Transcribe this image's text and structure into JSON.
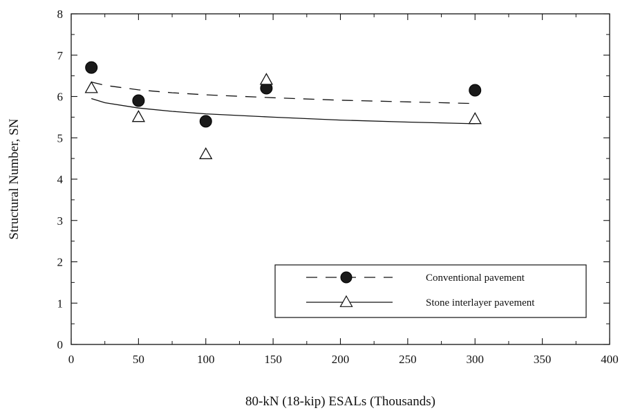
{
  "chart_data": {
    "type": "scatter",
    "xlabel": "80-kN (18-kip) ESALs (Thousands)",
    "ylabel": "Structural Number, SN",
    "xlim": [
      0,
      400
    ],
    "ylim": [
      0,
      8
    ],
    "x_ticks": [
      0,
      50,
      100,
      150,
      200,
      250,
      300,
      350,
      400
    ],
    "y_ticks": [
      0,
      1,
      2,
      3,
      4,
      5,
      6,
      7,
      8
    ],
    "grid": false,
    "legend_position": "bottom-right",
    "series": [
      {
        "name": "Conventional pavement",
        "marker": "filled-circle",
        "line_style": "dashed",
        "points": [
          {
            "x": 15,
            "y": 6.7
          },
          {
            "x": 50,
            "y": 5.9
          },
          {
            "x": 100,
            "y": 5.4
          },
          {
            "x": 145,
            "y": 6.2
          },
          {
            "x": 300,
            "y": 6.15
          }
        ],
        "trend": [
          {
            "x": 15,
            "y": 6.35
          },
          {
            "x": 25,
            "y": 6.27
          },
          {
            "x": 50,
            "y": 6.16
          },
          {
            "x": 75,
            "y": 6.09
          },
          {
            "x": 100,
            "y": 6.04
          },
          {
            "x": 150,
            "y": 5.97
          },
          {
            "x": 200,
            "y": 5.91
          },
          {
            "x": 250,
            "y": 5.87
          },
          {
            "x": 300,
            "y": 5.83
          }
        ]
      },
      {
        "name": "Stone interlayer pavement",
        "marker": "open-triangle",
        "line_style": "solid",
        "points": [
          {
            "x": 15,
            "y": 6.2
          },
          {
            "x": 50,
            "y": 5.5
          },
          {
            "x": 100,
            "y": 4.6
          },
          {
            "x": 145,
            "y": 6.4
          },
          {
            "x": 300,
            "y": 5.45
          }
        ],
        "trend": [
          {
            "x": 15,
            "y": 5.95
          },
          {
            "x": 25,
            "y": 5.85
          },
          {
            "x": 50,
            "y": 5.72
          },
          {
            "x": 75,
            "y": 5.64
          },
          {
            "x": 100,
            "y": 5.58
          },
          {
            "x": 150,
            "y": 5.5
          },
          {
            "x": 200,
            "y": 5.43
          },
          {
            "x": 250,
            "y": 5.38
          },
          {
            "x": 300,
            "y": 5.34
          }
        ]
      }
    ]
  }
}
